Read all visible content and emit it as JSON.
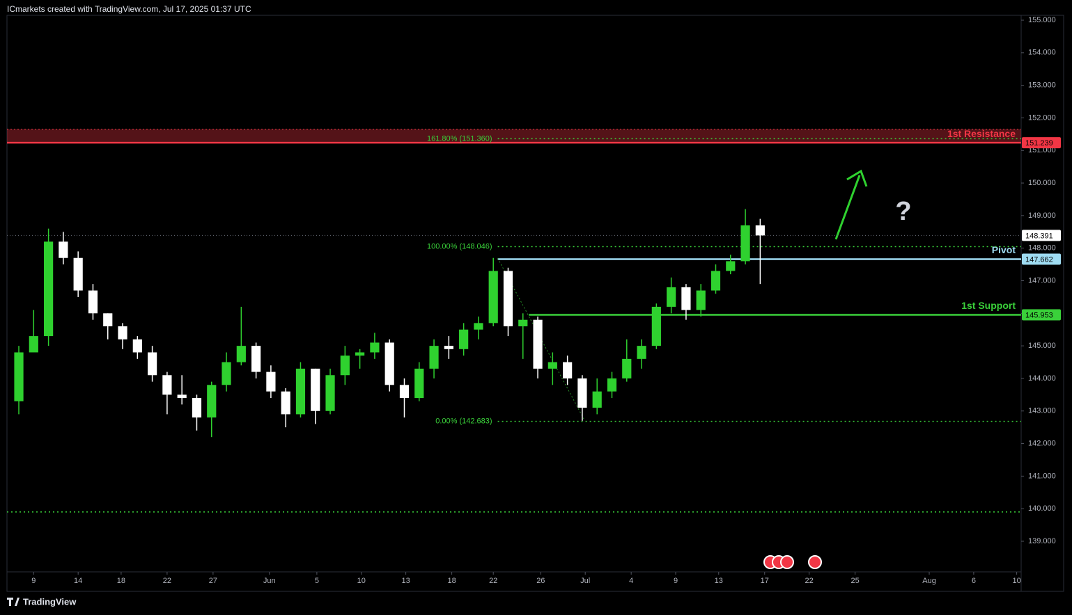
{
  "chart_data": {
    "type": "candlestick",
    "title": "ICmarkets created with TradingView.com, Jul 17, 2025 01:37 UTC",
    "footer": "TradingView",
    "annotation": "?",
    "up_color": "#2fd12f",
    "down_color": "#ffffff",
    "x": [
      -1,
      0,
      1,
      2,
      3,
      4,
      5,
      6,
      7,
      8,
      9,
      10,
      11,
      12,
      13,
      14,
      15,
      16,
      17,
      18,
      19,
      20,
      21,
      22,
      23,
      24,
      25,
      26,
      27,
      28,
      29,
      30,
      31,
      32,
      33,
      34,
      35,
      36,
      37,
      38,
      39,
      40,
      41,
      42,
      43,
      44,
      45,
      46,
      47,
      48,
      49
    ],
    "open": [
      143.3,
      144.8,
      145.3,
      148.2,
      147.7,
      146.7,
      146.0,
      145.6,
      145.2,
      144.8,
      144.1,
      143.5,
      143.4,
      142.8,
      143.8,
      144.5,
      145.0,
      144.2,
      143.6,
      142.9,
      144.3,
      143.0,
      144.1,
      144.7,
      144.8,
      145.1,
      143.8,
      143.4,
      144.3,
      145.0,
      144.9,
      145.5,
      145.7,
      147.3,
      145.6,
      145.8,
      144.3,
      144.5,
      144.0,
      143.1,
      143.6,
      144.0,
      144.6,
      145.0,
      146.2,
      146.8,
      146.1,
      146.7,
      147.3,
      147.6,
      148.7
    ],
    "high": [
      145.0,
      146.1,
      148.6,
      148.5,
      147.9,
      146.9,
      146.0,
      145.7,
      145.3,
      145.0,
      144.2,
      144.1,
      143.5,
      143.9,
      144.8,
      146.2,
      145.1,
      144.4,
      143.7,
      144.5,
      144.3,
      144.3,
      145.0,
      144.9,
      145.4,
      145.2,
      144.0,
      144.5,
      145.2,
      145.3,
      145.7,
      145.9,
      147.7,
      147.4,
      146.0,
      145.9,
      144.8,
      144.7,
      144.1,
      144.0,
      144.2,
      145.2,
      145.2,
      146.3,
      147.1,
      146.9,
      146.9,
      147.5,
      147.8,
      149.2,
      148.9
    ],
    "low": [
      142.9,
      144.8,
      145.0,
      147.5,
      146.5,
      145.8,
      145.2,
      144.9,
      144.6,
      143.9,
      142.9,
      143.2,
      142.4,
      142.2,
      143.6,
      144.4,
      144.0,
      143.4,
      142.5,
      142.8,
      142.6,
      142.9,
      143.8,
      144.3,
      144.6,
      143.6,
      142.8,
      143.3,
      144.0,
      144.6,
      144.7,
      145.2,
      145.6,
      145.3,
      144.6,
      144.0,
      143.8,
      143.8,
      142.7,
      142.9,
      143.4,
      143.9,
      144.3,
      144.9,
      146.0,
      145.8,
      145.9,
      146.6,
      147.2,
      147.5,
      146.9
    ],
    "close": [
      144.8,
      145.3,
      148.2,
      147.7,
      146.7,
      146.0,
      145.6,
      145.2,
      144.8,
      144.1,
      143.5,
      143.4,
      142.8,
      143.8,
      144.5,
      145.0,
      144.2,
      143.6,
      142.9,
      144.3,
      143.0,
      144.1,
      144.7,
      144.8,
      145.1,
      143.8,
      143.4,
      144.3,
      145.0,
      144.9,
      145.5,
      145.7,
      147.3,
      145.6,
      145.8,
      144.3,
      144.5,
      144.0,
      143.1,
      143.6,
      144.0,
      144.6,
      145.0,
      146.2,
      146.8,
      146.1,
      146.7,
      147.3,
      147.6,
      148.7,
      148.391
    ],
    "xlim": [
      -1.8,
      66.6
    ],
    "xticks": [
      {
        "value": 0,
        "label": "9"
      },
      {
        "value": 3,
        "label": "14"
      },
      {
        "value": 5.9,
        "label": "18"
      },
      {
        "value": 9,
        "label": "22"
      },
      {
        "value": 12.1,
        "label": "27"
      },
      {
        "value": 15.9,
        "label": "Jun"
      },
      {
        "value": 19.1,
        "label": "5"
      },
      {
        "value": 22.1,
        "label": "10"
      },
      {
        "value": 25.1,
        "label": "13"
      },
      {
        "value": 28.2,
        "label": "18"
      },
      {
        "value": 31,
        "label": "22"
      },
      {
        "value": 34.2,
        "label": "26"
      },
      {
        "value": 37.2,
        "label": "Jul"
      },
      {
        "value": 40.3,
        "label": "4"
      },
      {
        "value": 43.3,
        "label": "9"
      },
      {
        "value": 46.2,
        "label": "13"
      },
      {
        "value": 49.3,
        "label": "17"
      },
      {
        "value": 52.3,
        "label": "22"
      },
      {
        "value": 55.4,
        "label": "25"
      },
      {
        "value": 60.4,
        "label": "Aug"
      },
      {
        "value": 63.4,
        "label": "6"
      },
      {
        "value": 66.3,
        "label": "10"
      }
    ],
    "ylim": [
      138.06,
      155.15
    ],
    "yticks": [
      {
        "value": 139,
        "label": "139.000"
      },
      {
        "value": 140,
        "label": "140.000"
      },
      {
        "value": 141,
        "label": "141.000"
      },
      {
        "value": 142,
        "label": "142.000"
      },
      {
        "value": 143,
        "label": "143.000"
      },
      {
        "value": 144,
        "label": "144.000"
      },
      {
        "value": 145,
        "label": "145.000"
      },
      {
        "value": 146,
        "label": "146.000"
      },
      {
        "value": 147,
        "label": "147.000"
      },
      {
        "value": 148,
        "label": "148.000"
      },
      {
        "value": 149,
        "label": "149.000"
      },
      {
        "value": 150,
        "label": "150.000"
      },
      {
        "value": 151,
        "label": "151.000"
      },
      {
        "value": 152,
        "label": "152.000"
      },
      {
        "value": 153,
        "label": "153.000"
      },
      {
        "value": 154,
        "label": "154.000"
      },
      {
        "value": 155,
        "label": "155.000"
      }
    ],
    "resistance_zone": [
      151.239,
      151.65
    ],
    "levels": [
      {
        "name": "1st Resistance",
        "value": 151.239,
        "color": "#f23645",
        "style": "solid",
        "x_start": -1.8,
        "tag": true
      },
      {
        "name": "Pivot",
        "value": 147.662,
        "color": "#9fdcf2",
        "style": "solid",
        "x_start": 31.3,
        "tag": true
      },
      {
        "name": "1st Support",
        "value": 145.953,
        "color": "#3ad13a",
        "style": "solid",
        "x_start": 33.4,
        "tag": true
      },
      {
        "label": "161.80% (151.360)",
        "value": 151.36,
        "color": "#3ad13a",
        "style": "dotted",
        "x_start": 31.3
      },
      {
        "label": "100.00% (148.046)",
        "value": 148.046,
        "color": "#3ad13a",
        "style": "dotted",
        "x_start": 31.3
      },
      {
        "label": "0.00% (142.683)",
        "value": 142.683,
        "color": "#3ad13a",
        "style": "dotted",
        "x_start": 31.3
      },
      {
        "value": 139.9,
        "color": "#3ad13a",
        "style": "dotted",
        "x_start": -1.8
      }
    ],
    "last_price": 148.391,
    "fib_trend": {
      "x": [
        31.3,
        37.1
      ],
      "y": [
        147.69,
        142.76
      ]
    }
  }
}
